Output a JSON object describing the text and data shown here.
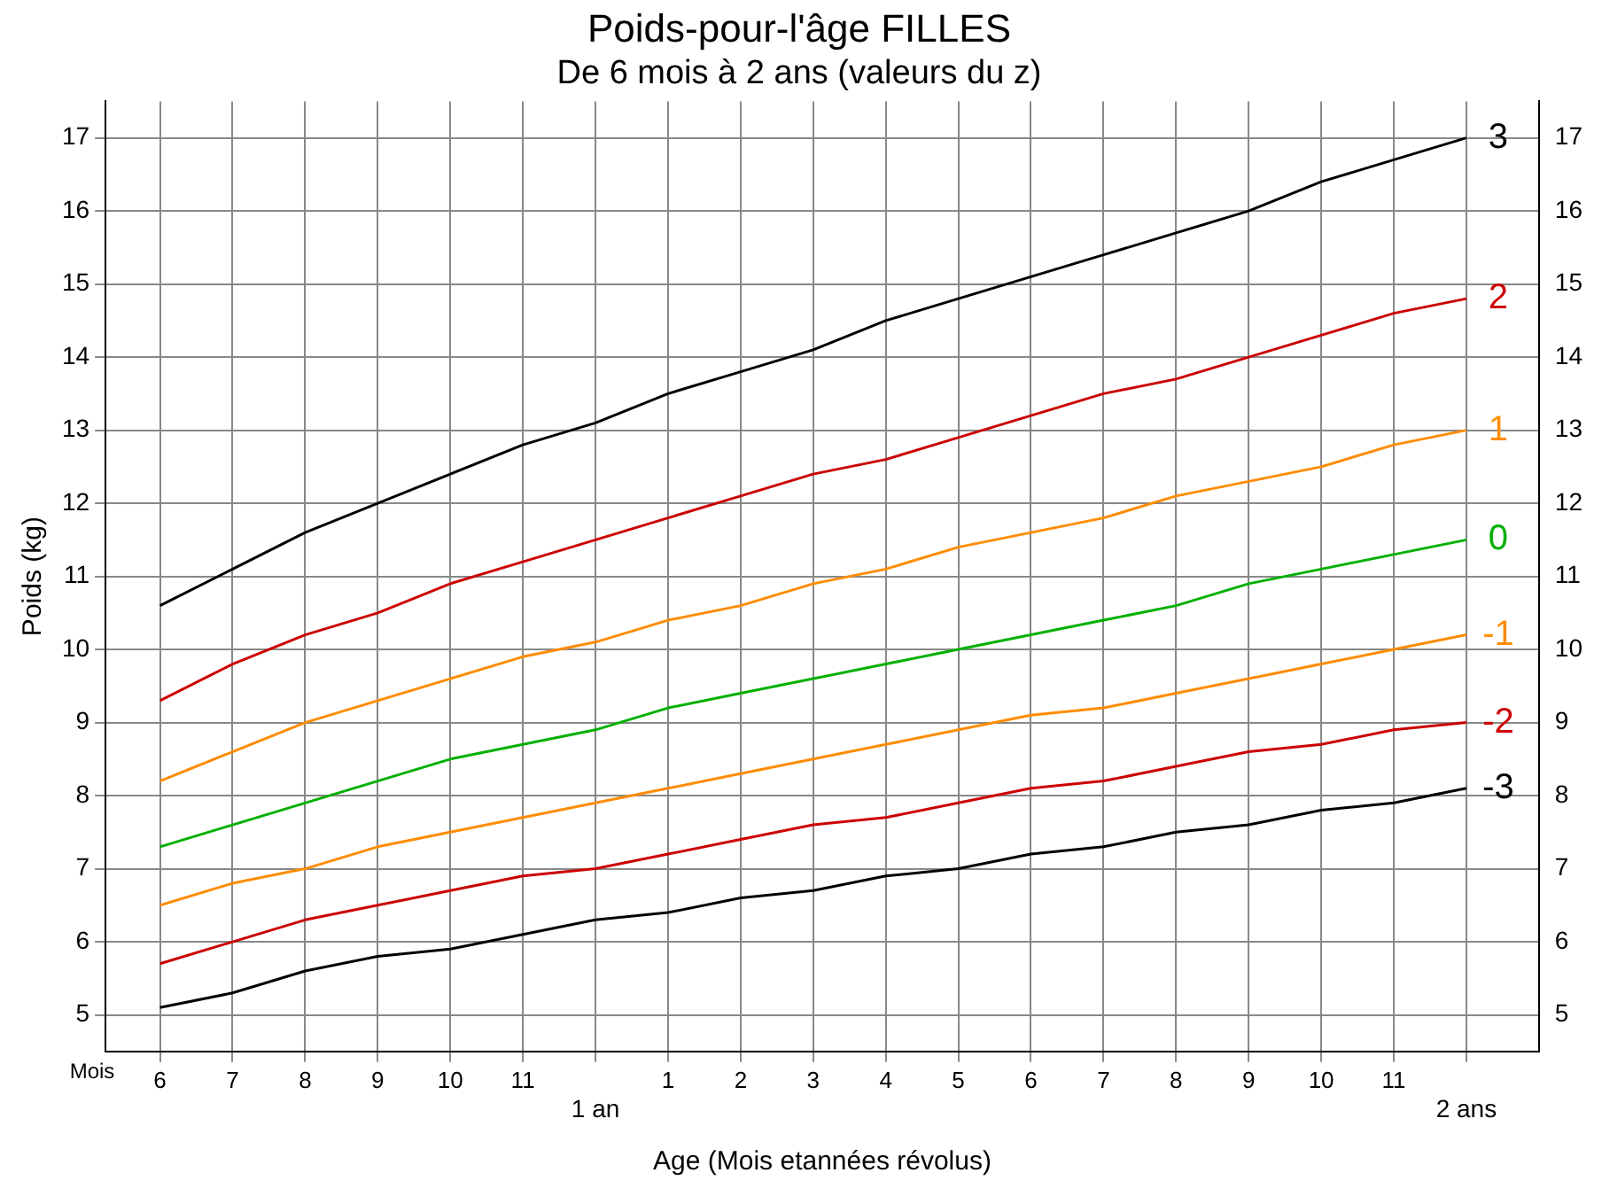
{
  "chart_data": {
    "type": "line",
    "title": "Poids-pour-l'âge FILLES",
    "subtitle": "De 6 mois à 2 ans (valeurs du z)",
    "xlabel": "Age (Mois etannées révolus)",
    "ylabel": "Poids (kg)",
    "annotations": [
      "Mois",
      "1 an",
      "2 ans"
    ],
    "categories": [
      "6",
      "7",
      "8",
      "9",
      "10",
      "11",
      null,
      "1",
      "2",
      "3",
      "4",
      "5",
      "6",
      "7",
      "8",
      "9",
      "10",
      "11",
      null
    ],
    "series": [
      {
        "name": "3",
        "color": "#000000",
        "values": [
          10.6,
          11.1,
          11.6,
          12.0,
          12.4,
          12.8,
          13.1,
          13.5,
          13.8,
          14.1,
          14.5,
          14.8,
          15.1,
          15.4,
          15.7,
          16.0,
          16.4,
          16.7,
          17.0
        ]
      },
      {
        "name": "2",
        "color": "#cc0000",
        "values": [
          9.3,
          9.8,
          10.2,
          10.5,
          10.9,
          11.2,
          11.5,
          11.8,
          12.1,
          12.4,
          12.6,
          12.9,
          13.2,
          13.5,
          13.7,
          14.0,
          14.3,
          14.6,
          14.8
        ]
      },
      {
        "name": "1",
        "color": "#ff8c00",
        "values": [
          8.2,
          8.6,
          9.0,
          9.3,
          9.6,
          9.9,
          10.1,
          10.4,
          10.6,
          10.9,
          11.1,
          11.4,
          11.6,
          11.8,
          12.1,
          12.3,
          12.5,
          12.8,
          13.0
        ]
      },
      {
        "name": "0",
        "color": "#00b000",
        "values": [
          7.3,
          7.6,
          7.9,
          8.2,
          8.5,
          8.7,
          8.9,
          9.2,
          9.4,
          9.6,
          9.8,
          10.0,
          10.2,
          10.4,
          10.6,
          10.9,
          11.1,
          11.3,
          11.5
        ]
      },
      {
        "name": "-1",
        "color": "#ff8c00",
        "values": [
          6.5,
          6.8,
          7.0,
          7.3,
          7.5,
          7.7,
          7.9,
          8.1,
          8.3,
          8.5,
          8.7,
          8.9,
          9.1,
          9.2,
          9.4,
          9.6,
          9.8,
          10.0,
          10.2
        ]
      },
      {
        "name": "-2",
        "color": "#cc0000",
        "values": [
          5.7,
          6.0,
          6.3,
          6.5,
          6.7,
          6.9,
          7.0,
          7.2,
          7.4,
          7.6,
          7.7,
          7.9,
          8.1,
          8.2,
          8.4,
          8.6,
          8.7,
          8.9,
          9.0
        ]
      },
      {
        "name": "-3",
        "color": "#000000",
        "values": [
          5.1,
          5.3,
          5.6,
          5.8,
          5.9,
          6.1,
          6.3,
          6.4,
          6.6,
          6.7,
          6.9,
          7.0,
          7.2,
          7.3,
          7.5,
          7.6,
          7.8,
          7.9,
          8.1
        ]
      }
    ],
    "ylim": [
      4.5,
      17.5
    ],
    "yticks": [
      5,
      6,
      7,
      8,
      9,
      10,
      11,
      12,
      13,
      14,
      15,
      16,
      17
    ],
    "y2lim": [
      4.5,
      17.5
    ],
    "y2ticks": [
      5,
      6,
      7,
      8,
      9,
      10,
      11,
      12,
      13,
      14,
      15,
      16,
      17
    ],
    "grid": true,
    "legend": false,
    "marker": "none",
    "line_style": "solid"
  }
}
